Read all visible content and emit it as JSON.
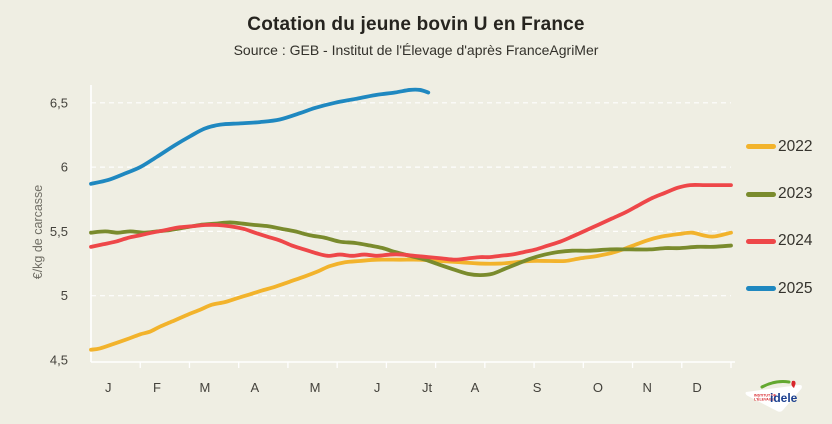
{
  "header": {
    "title": "Cotation du jeune bovin U en France",
    "subtitle": "Source : GEB - Institut de l'Élevage d'après FranceAgriMer"
  },
  "colors": {
    "background": "#efeee3",
    "grid": "#ffffff",
    "axis": "#ffffff",
    "tick_text": "#44423c",
    "axis_title_text": "#716f66",
    "series_2022": "#f2b32c",
    "series_2023": "#7a8b2d",
    "series_2024": "#ee4749",
    "series_2025": "#1f88c0"
  },
  "legend": {
    "entries": [
      {
        "label": "2022",
        "color": "#f2b32c"
      },
      {
        "label": "2023",
        "color": "#7a8b2d"
      },
      {
        "label": "2024",
        "color": "#ee4749"
      },
      {
        "label": "2025",
        "color": "#1f88c0"
      }
    ]
  },
  "logo": {
    "brand": "idele",
    "org_line1": "INSTITUT DE",
    "org_line2": "L'ÉLEVAGE"
  },
  "chart_data": {
    "type": "line",
    "title": "Cotation du jeune bovin U en France",
    "subtitle": "Source : GEB - Institut de l'Élevage d'après FranceAgriMer",
    "ylabel": "€/kg de carcasse",
    "xlabel": "",
    "ylim": [
      4.45,
      6.65
    ],
    "x_unit": "fraction of year, 0 = early January, 1 = end of December",
    "grid": "horizontal dashed white lines at each 0.5 step",
    "legend_position": "right",
    "yticks": [
      {
        "label": "4,5",
        "value": 4.5
      },
      {
        "label": "5",
        "value": 5.0
      },
      {
        "label": "5,5",
        "value": 5.5
      },
      {
        "label": "6",
        "value": 6.0
      },
      {
        "label": "6,5",
        "value": 6.5
      }
    ],
    "xticklabels": [
      {
        "label": "J",
        "x": 0.027
      },
      {
        "label": "F",
        "x": 0.103
      },
      {
        "label": "M",
        "x": 0.178
      },
      {
        "label": "A",
        "x": 0.256
      },
      {
        "label": "M",
        "x": 0.35
      },
      {
        "label": "J",
        "x": 0.447
      },
      {
        "label": "Jt",
        "x": 0.525
      },
      {
        "label": "A",
        "x": 0.6
      },
      {
        "label": "S",
        "x": 0.697
      },
      {
        "label": "O",
        "x": 0.792
      },
      {
        "label": "N",
        "x": 0.869
      },
      {
        "label": "D",
        "x": 0.947
      }
    ],
    "axis_tick_count": 13,
    "series": [
      {
        "name": "2022",
        "color": "#f2b32c",
        "points": [
          [
            0,
            4.58
          ],
          [
            0.014,
            4.59
          ],
          [
            0.038,
            4.63
          ],
          [
            0.061,
            4.67
          ],
          [
            0.077,
            4.7
          ],
          [
            0.092,
            4.72
          ],
          [
            0.108,
            4.76
          ],
          [
            0.127,
            4.8
          ],
          [
            0.15,
            4.85
          ],
          [
            0.17,
            4.89
          ],
          [
            0.189,
            4.93
          ],
          [
            0.209,
            4.95
          ],
          [
            0.228,
            4.98
          ],
          [
            0.248,
            5.01
          ],
          [
            0.267,
            5.04
          ],
          [
            0.288,
            5.07
          ],
          [
            0.311,
            5.11
          ],
          [
            0.334,
            5.15
          ],
          [
            0.355,
            5.19
          ],
          [
            0.373,
            5.23
          ],
          [
            0.397,
            5.26
          ],
          [
            0.42,
            5.27
          ],
          [
            0.447,
            5.28
          ],
          [
            0.483,
            5.28
          ],
          [
            0.514,
            5.28
          ],
          [
            0.545,
            5.27
          ],
          [
            0.577,
            5.26
          ],
          [
            0.608,
            5.25
          ],
          [
            0.639,
            5.25
          ],
          [
            0.663,
            5.26
          ],
          [
            0.688,
            5.27
          ],
          [
            0.717,
            5.27
          ],
          [
            0.741,
            5.27
          ],
          [
            0.764,
            5.29
          ],
          [
            0.792,
            5.31
          ],
          [
            0.819,
            5.34
          ],
          [
            0.842,
            5.38
          ],
          [
            0.869,
            5.43
          ],
          [
            0.892,
            5.46
          ],
          [
            0.919,
            5.48
          ],
          [
            0.939,
            5.49
          ],
          [
            0.956,
            5.47
          ],
          [
            0.973,
            5.46
          ],
          [
            1.0,
            5.49
          ]
        ]
      },
      {
        "name": "2023",
        "color": "#7a8b2d",
        "points": [
          [
            0,
            5.49
          ],
          [
            0.022,
            5.5
          ],
          [
            0.042,
            5.49
          ],
          [
            0.061,
            5.5
          ],
          [
            0.084,
            5.49
          ],
          [
            0.103,
            5.5
          ],
          [
            0.123,
            5.51
          ],
          [
            0.147,
            5.53
          ],
          [
            0.17,
            5.55
          ],
          [
            0.194,
            5.56
          ],
          [
            0.217,
            5.57
          ],
          [
            0.238,
            5.56
          ],
          [
            0.256,
            5.55
          ],
          [
            0.277,
            5.54
          ],
          [
            0.298,
            5.52
          ],
          [
            0.319,
            5.5
          ],
          [
            0.342,
            5.47
          ],
          [
            0.366,
            5.45
          ],
          [
            0.389,
            5.42
          ],
          [
            0.413,
            5.41
          ],
          [
            0.436,
            5.39
          ],
          [
            0.456,
            5.37
          ],
          [
            0.475,
            5.34
          ],
          [
            0.498,
            5.31
          ],
          [
            0.522,
            5.28
          ],
          [
            0.545,
            5.24
          ],
          [
            0.569,
            5.2
          ],
          [
            0.589,
            5.17
          ],
          [
            0.608,
            5.16
          ],
          [
            0.627,
            5.17
          ],
          [
            0.647,
            5.21
          ],
          [
            0.667,
            5.25
          ],
          [
            0.688,
            5.29
          ],
          [
            0.709,
            5.32
          ],
          [
            0.73,
            5.34
          ],
          [
            0.752,
            5.35
          ],
          [
            0.78,
            5.35
          ],
          [
            0.811,
            5.36
          ],
          [
            0.842,
            5.36
          ],
          [
            0.873,
            5.36
          ],
          [
            0.897,
            5.37
          ],
          [
            0.92,
            5.37
          ],
          [
            0.947,
            5.38
          ],
          [
            0.973,
            5.38
          ],
          [
            1.0,
            5.39
          ]
        ]
      },
      {
        "name": "2024",
        "color": "#ee4749",
        "points": [
          [
            0,
            5.38
          ],
          [
            0.019,
            5.4
          ],
          [
            0.038,
            5.42
          ],
          [
            0.058,
            5.45
          ],
          [
            0.077,
            5.47
          ],
          [
            0.095,
            5.49
          ],
          [
            0.116,
            5.51
          ],
          [
            0.136,
            5.53
          ],
          [
            0.158,
            5.54
          ],
          [
            0.178,
            5.55
          ],
          [
            0.198,
            5.55
          ],
          [
            0.217,
            5.54
          ],
          [
            0.238,
            5.52
          ],
          [
            0.256,
            5.49
          ],
          [
            0.275,
            5.46
          ],
          [
            0.295,
            5.43
          ],
          [
            0.314,
            5.39
          ],
          [
            0.333,
            5.36
          ],
          [
            0.352,
            5.33
          ],
          [
            0.37,
            5.31
          ],
          [
            0.389,
            5.32
          ],
          [
            0.408,
            5.31
          ],
          [
            0.427,
            5.32
          ],
          [
            0.447,
            5.31
          ],
          [
            0.467,
            5.32
          ],
          [
            0.486,
            5.32
          ],
          [
            0.506,
            5.31
          ],
          [
            0.527,
            5.3
          ],
          [
            0.548,
            5.29
          ],
          [
            0.569,
            5.28
          ],
          [
            0.589,
            5.29
          ],
          [
            0.608,
            5.3
          ],
          [
            0.623,
            5.3
          ],
          [
            0.639,
            5.31
          ],
          [
            0.658,
            5.32
          ],
          [
            0.677,
            5.34
          ],
          [
            0.695,
            5.36
          ],
          [
            0.714,
            5.39
          ],
          [
            0.733,
            5.42
          ],
          [
            0.752,
            5.46
          ],
          [
            0.77,
            5.5
          ],
          [
            0.792,
            5.55
          ],
          [
            0.814,
            5.6
          ],
          [
            0.836,
            5.65
          ],
          [
            0.858,
            5.71
          ],
          [
            0.877,
            5.76
          ],
          [
            0.897,
            5.8
          ],
          [
            0.917,
            5.84
          ],
          [
            0.936,
            5.86
          ],
          [
            0.959,
            5.86
          ],
          [
            0.98,
            5.86
          ],
          [
            1.0,
            5.86
          ]
        ]
      },
      {
        "name": "2025",
        "color": "#1f88c0",
        "points": [
          [
            0,
            5.87
          ],
          [
            0.027,
            5.9
          ],
          [
            0.053,
            5.95
          ],
          [
            0.077,
            6.0
          ],
          [
            0.103,
            6.08
          ],
          [
            0.131,
            6.17
          ],
          [
            0.155,
            6.24
          ],
          [
            0.178,
            6.3
          ],
          [
            0.202,
            6.33
          ],
          [
            0.233,
            6.34
          ],
          [
            0.264,
            6.35
          ],
          [
            0.295,
            6.37
          ],
          [
            0.327,
            6.42
          ],
          [
            0.35,
            6.46
          ],
          [
            0.381,
            6.5
          ],
          [
            0.413,
            6.53
          ],
          [
            0.444,
            6.56
          ],
          [
            0.475,
            6.58
          ],
          [
            0.498,
            6.6
          ],
          [
            0.514,
            6.6
          ],
          [
            0.527,
            6.58
          ]
        ]
      }
    ]
  }
}
